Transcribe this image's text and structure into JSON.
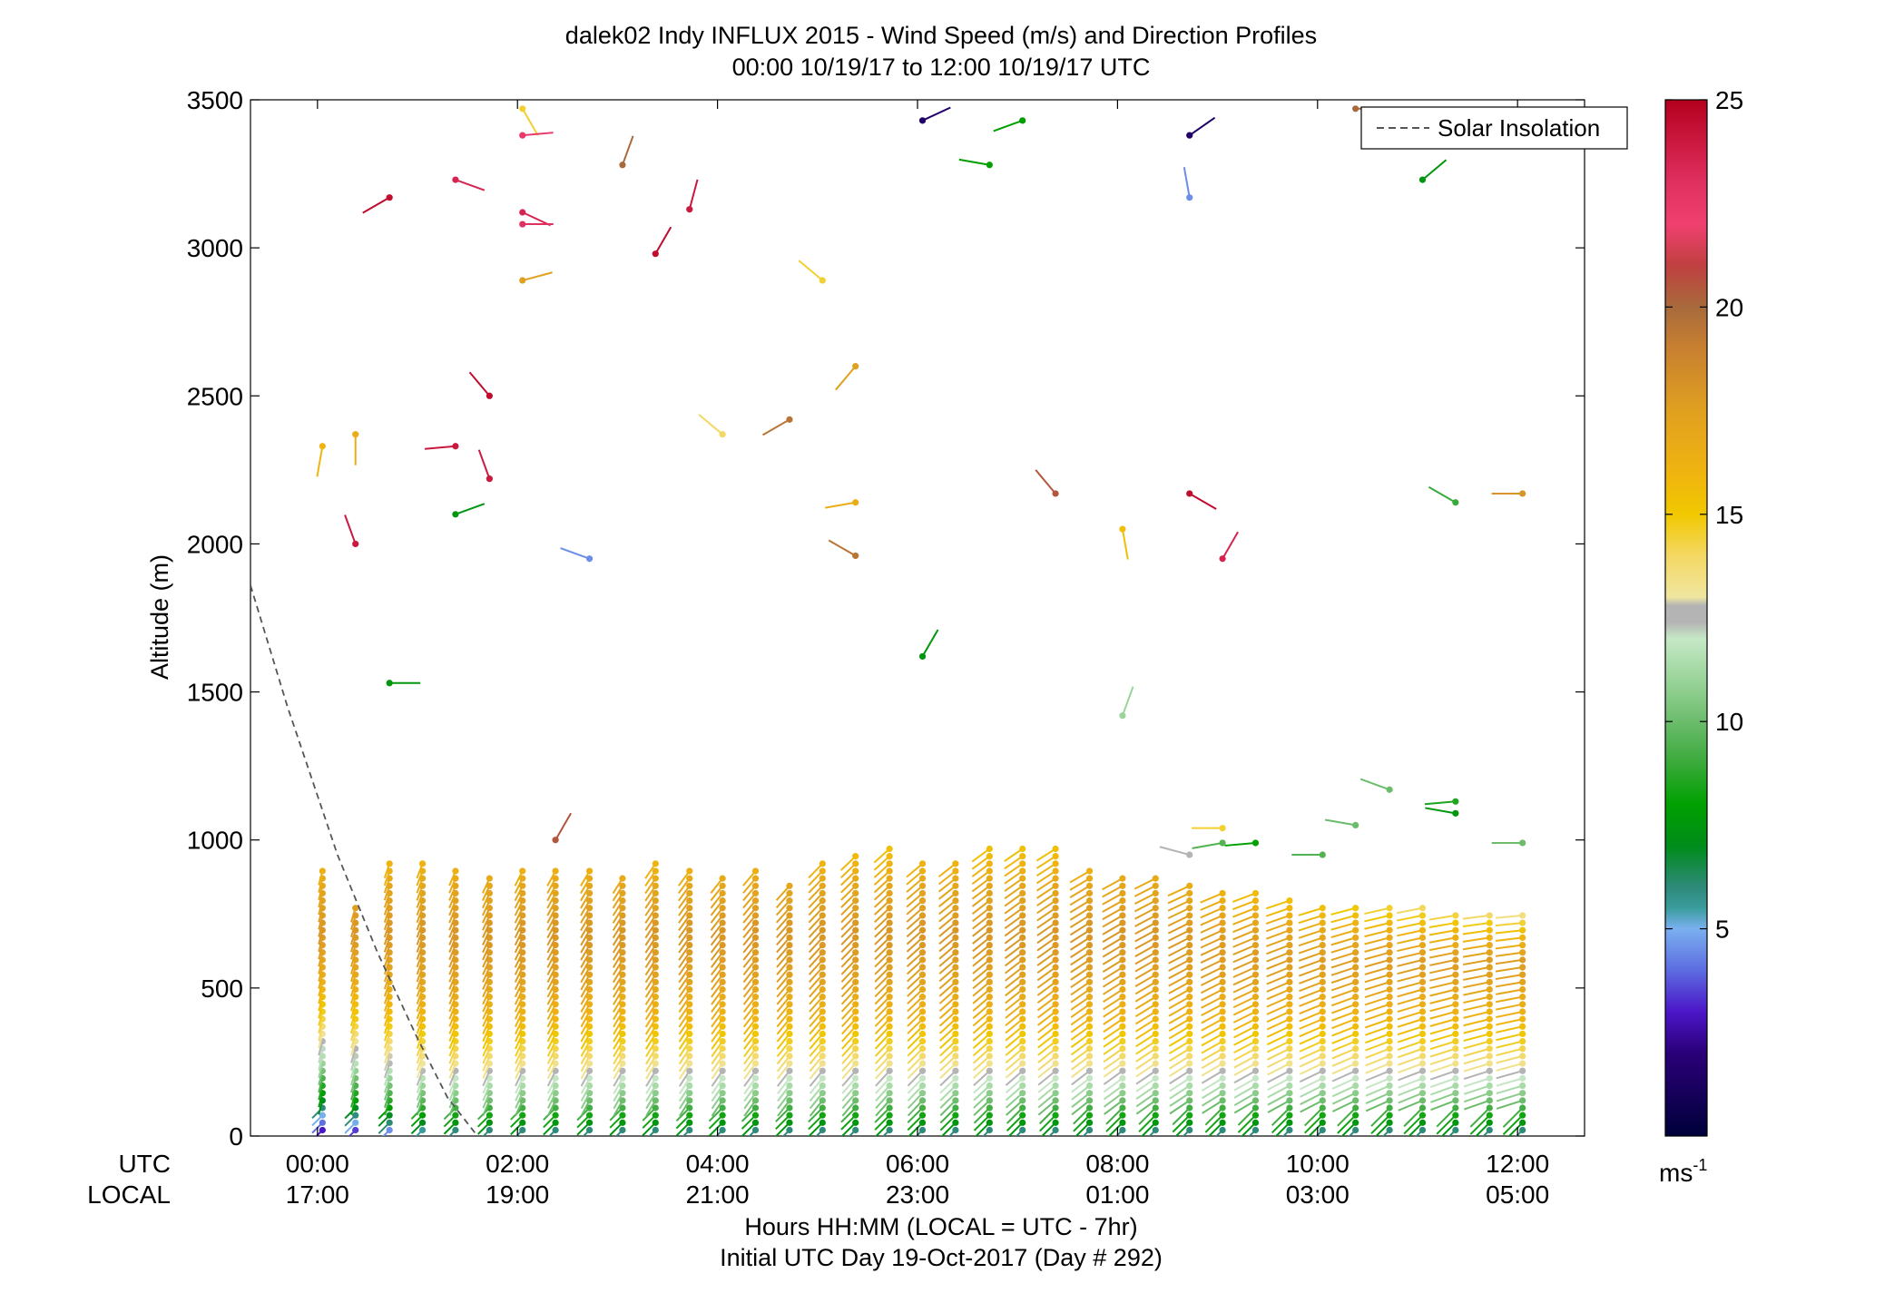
{
  "chart_data": {
    "type": "scatter",
    "title": "dalek02 Indy INFLUX 2015 - Wind Speed (m/s) and Direction Profiles",
    "subtitle": "00:00 10/19/17 to 12:00 10/19/17  UTC",
    "ylabel": "Altitude (m)",
    "xlabel": "Hours HH:MM  (LOCAL = UTC - 7hr)",
    "xlabel2": "Initial UTC Day 19-Oct-2017 (Day # 292)",
    "x_row_labels": [
      "UTC",
      "LOCAL"
    ],
    "x_ticks_utc": [
      "00:00",
      "02:00",
      "04:00",
      "06:00",
      "08:00",
      "10:00",
      "12:00"
    ],
    "x_ticks_local": [
      "17:00",
      "19:00",
      "21:00",
      "23:00",
      "01:00",
      "03:00",
      "05:00"
    ],
    "x_tick_hours": [
      0,
      2,
      4,
      6,
      8,
      10,
      12
    ],
    "xlim_hours": [
      -0.67,
      12.67
    ],
    "ylim": [
      0,
      3500
    ],
    "y_ticks": [
      "0",
      "500",
      "1000",
      "1500",
      "2000",
      "2500",
      "3000",
      "3500"
    ],
    "y_tick_values": [
      0,
      500,
      1000,
      1500,
      2000,
      2500,
      3000,
      3500
    ],
    "colorbar": {
      "range": [
        0,
        25
      ],
      "ticks": [
        "5",
        "10",
        "15",
        "20",
        "25"
      ],
      "tick_values": [
        5,
        10,
        15,
        20,
        25
      ],
      "unit_base": "ms",
      "unit_exp": "-1"
    },
    "legend": {
      "entries": [
        "Solar Insolation"
      ],
      "placement": "top-right"
    },
    "solar_insolation": {
      "style": "dashed",
      "color": "#555555",
      "points": [
        [
          -0.67,
          1860
        ],
        [
          -0.3,
          1450
        ],
        [
          0.2,
          950
        ],
        [
          0.6,
          620
        ],
        [
          1.0,
          330
        ],
        [
          1.3,
          130
        ],
        [
          1.6,
          0
        ]
      ]
    },
    "profile_times_hours": [
      0.05,
      0.38,
      0.72,
      1.05,
      1.38,
      1.72,
      2.05,
      2.38,
      2.72,
      3.05,
      3.38,
      3.72,
      4.05,
      4.38,
      4.72,
      5.05,
      5.38,
      5.72,
      6.05,
      6.38,
      6.72,
      7.05,
      7.38,
      7.72,
      8.05,
      8.38,
      8.72,
      9.05,
      9.38,
      9.72,
      10.05,
      10.38,
      10.72,
      11.05,
      11.38,
      11.72,
      12.05
    ],
    "profile_top_m": [
      900,
      780,
      940,
      940,
      900,
      870,
      900,
      900,
      900,
      880,
      940,
      900,
      870,
      900,
      860,
      920,
      960,
      990,
      940,
      930,
      990,
      990,
      990,
      900,
      890,
      880,
      860,
      840,
      820,
      800,
      790,
      780,
      770,
      770,
      760,
      760,
      760
    ],
    "speed_profile_m": [
      0,
      30,
      120,
      250,
      400,
      550,
      700,
      850,
      1000
    ],
    "speed_profile_ms": [
      4,
      7,
      10,
      13.5,
      16,
      17.5,
      18,
      17,
      15
    ],
    "wind_colormap": [
      [
        0,
        "#00003a"
      ],
      [
        2,
        "#2a0078"
      ],
      [
        3,
        "#4b16c8"
      ],
      [
        4,
        "#5d6ce0"
      ],
      [
        5,
        "#7ab0f0"
      ],
      [
        5.5,
        "#3a9c9c"
      ],
      [
        6,
        "#2e8a7a"
      ],
      [
        7,
        "#008c1a"
      ],
      [
        8,
        "#00a000"
      ],
      [
        9,
        "#3aaa3a"
      ],
      [
        10,
        "#6cbc6c"
      ],
      [
        11,
        "#9ad49a"
      ],
      [
        12,
        "#c6e8c6"
      ],
      [
        12.4,
        "#b4b4b4"
      ],
      [
        12.8,
        "#b4b4b4"
      ],
      [
        13,
        "#f0e6a0"
      ],
      [
        14,
        "#f4d864"
      ],
      [
        15,
        "#f0c800"
      ],
      [
        16,
        "#f0b410"
      ],
      [
        17.5,
        "#e0a020"
      ],
      [
        19,
        "#c88030"
      ],
      [
        20,
        "#a86a3c"
      ],
      [
        21,
        "#c04040"
      ],
      [
        22,
        "#f04070"
      ],
      [
        23,
        "#e03060"
      ],
      [
        25,
        "#b4001e"
      ]
    ],
    "isolated_barbs": [
      {
        "t": 0.05,
        "alt": 2330,
        "spd": 16,
        "dir": 190
      },
      {
        "t": 0.38,
        "alt": 2370,
        "spd": 16.5,
        "dir": 180
      },
      {
        "t": 0.38,
        "alt": 2000,
        "spd": 24,
        "dir": 340
      },
      {
        "t": 0.72,
        "alt": 3170,
        "spd": 24.5,
        "dir": 240
      },
      {
        "t": 0.72,
        "alt": 1530,
        "spd": 7.5,
        "dir": 90
      },
      {
        "t": 1.38,
        "alt": 3230,
        "spd": 23.5,
        "dir": 110
      },
      {
        "t": 1.38,
        "alt": 2330,
        "spd": 24,
        "dir": 265
      },
      {
        "t": 1.38,
        "alt": 2100,
        "spd": 7.5,
        "dir": 70
      },
      {
        "t": 1.72,
        "alt": 2500,
        "spd": 24.5,
        "dir": 320
      },
      {
        "t": 1.72,
        "alt": 2220,
        "spd": 24,
        "dir": 340
      },
      {
        "t": 2.05,
        "alt": 3470,
        "spd": 14.5,
        "dir": 150
      },
      {
        "t": 2.05,
        "alt": 3380,
        "spd": 22.5,
        "dir": 85
      },
      {
        "t": 2.05,
        "alt": 3120,
        "spd": 23.5,
        "dir": 115
      },
      {
        "t": 2.05,
        "alt": 3080,
        "spd": 23,
        "dir": 90
      },
      {
        "t": 2.05,
        "alt": 2890,
        "spd": 17.5,
        "dir": 75
      },
      {
        "t": 2.38,
        "alt": 1000,
        "spd": 20.5,
        "dir": 30
      },
      {
        "t": 2.72,
        "alt": 1950,
        "spd": 4.5,
        "dir": 290
      },
      {
        "t": 3.05,
        "alt": 3280,
        "spd": 20,
        "dir": 20
      },
      {
        "t": 3.38,
        "alt": 2980,
        "spd": 24.5,
        "dir": 30
      },
      {
        "t": 3.72,
        "alt": 3130,
        "spd": 24,
        "dir": 15
      },
      {
        "t": 4.05,
        "alt": 2370,
        "spd": 14,
        "dir": 310
      },
      {
        "t": 4.72,
        "alt": 2420,
        "spd": 19.5,
        "dir": 240
      },
      {
        "t": 5.05,
        "alt": 2890,
        "spd": 14.5,
        "dir": 310
      },
      {
        "t": 5.38,
        "alt": 2600,
        "spd": 17.5,
        "dir": 220
      },
      {
        "t": 5.38,
        "alt": 2140,
        "spd": 16.5,
        "dir": 260
      },
      {
        "t": 5.38,
        "alt": 1960,
        "spd": 19.5,
        "dir": 300
      },
      {
        "t": 6.05,
        "alt": 3430,
        "spd": 1.5,
        "dir": 65
      },
      {
        "t": 6.05,
        "alt": 1620,
        "spd": 7.5,
        "dir": 30
      },
      {
        "t": 6.72,
        "alt": 3280,
        "spd": 8,
        "dir": 280
      },
      {
        "t": 7.05,
        "alt": 3430,
        "spd": 8,
        "dir": 250
      },
      {
        "t": 7.38,
        "alt": 2170,
        "spd": 20.5,
        "dir": 320
      },
      {
        "t": 8.05,
        "alt": 2050,
        "spd": 15.5,
        "dir": 170
      },
      {
        "t": 8.05,
        "alt": 1420,
        "spd": 11,
        "dir": 20
      },
      {
        "t": 8.72,
        "alt": 3380,
        "spd": 1.5,
        "dir": 55
      },
      {
        "t": 8.72,
        "alt": 3170,
        "spd": 4.5,
        "dir": 350
      },
      {
        "t": 8.72,
        "alt": 2170,
        "spd": 24.5,
        "dir": 120
      },
      {
        "t": 9.05,
        "alt": 1950,
        "spd": 23.5,
        "dir": 30
      },
      {
        "t": 10.38,
        "alt": 3470,
        "spd": 20,
        "dir": 90
      },
      {
        "t": 11.05,
        "alt": 3230,
        "spd": 7.5,
        "dir": 50
      },
      {
        "t": 11.38,
        "alt": 2140,
        "spd": 9,
        "dir": 300
      },
      {
        "t": 12.05,
        "alt": 2170,
        "spd": 18,
        "dir": 270
      },
      {
        "t": 9.05,
        "alt": 1040,
        "spd": 14.5,
        "dir": 270
      },
      {
        "t": 9.38,
        "alt": 990,
        "spd": 8,
        "dir": 265
      },
      {
        "t": 10.38,
        "alt": 1050,
        "spd": 10,
        "dir": 280
      },
      {
        "t": 10.72,
        "alt": 1170,
        "spd": 10,
        "dir": 290
      },
      {
        "t": 11.38,
        "alt": 1130,
        "spd": 8.5,
        "dir": 265
      },
      {
        "t": 11.38,
        "alt": 1090,
        "spd": 7.5,
        "dir": 280
      },
      {
        "t": 12.05,
        "alt": 990,
        "spd": 10,
        "dir": 270
      },
      {
        "t": 8.72,
        "alt": 950,
        "spd": 12.6,
        "dir": 285
      },
      {
        "t": 9.05,
        "alt": 990,
        "spd": 9.5,
        "dir": 260
      },
      {
        "t": 10.05,
        "alt": 950,
        "spd": 9.5,
        "dir": 270
      }
    ]
  }
}
